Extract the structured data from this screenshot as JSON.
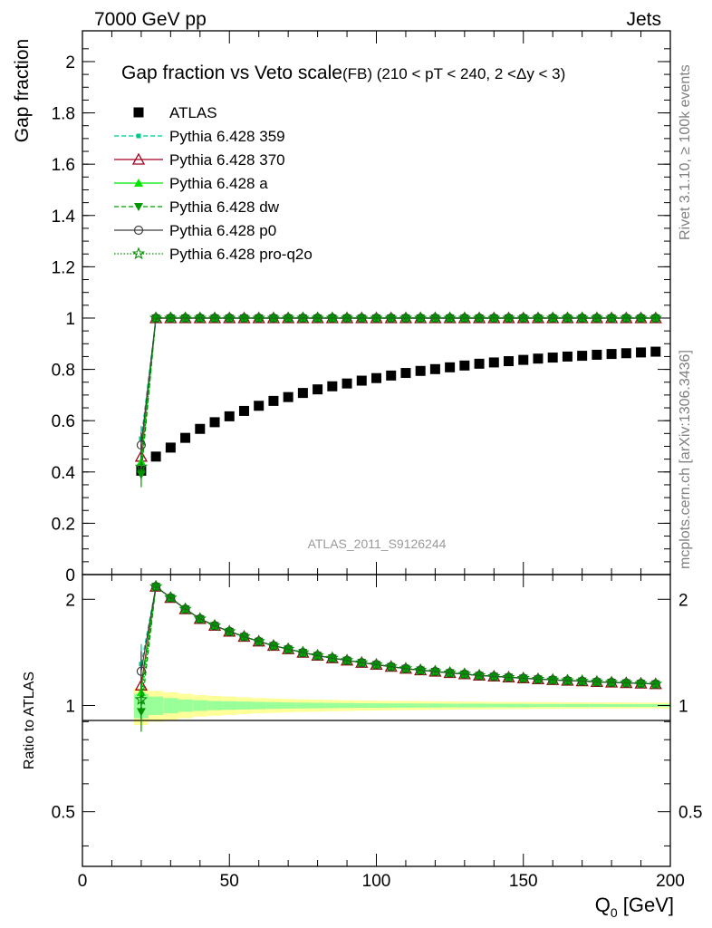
{
  "header": {
    "left": "7000 GeV pp",
    "right": "Jets"
  },
  "side_labels": {
    "rivet": "Rivet 3.1.10, ≥ 100k events",
    "mcplots": "mcplots.cern.ch [arXiv:1306.3436]"
  },
  "colors": {
    "atlas": "#000000",
    "p359": "#00c88c",
    "p370": "#a0001e",
    "a": "#00e600",
    "dw": "#009600",
    "p0": "#404040",
    "proq2o": "#008c00",
    "band_yellow": "#ffff99",
    "band_green": "#99ff99"
  },
  "chart_data": [
    {
      "type": "scatter",
      "title": "Gap fraction vs Veto scale",
      "subtitle": "(FB) (210 < pT < 240, 2 <Δy < 3)",
      "ylabel": "Gap fraction",
      "watermark": "ATLAS_2011_S9126244",
      "xlim": [
        0,
        200
      ],
      "ylim": [
        0,
        2.12
      ],
      "yticks": [
        0,
        0.2,
        0.4,
        0.6,
        0.8,
        1,
        1.2,
        1.4,
        1.6,
        1.8,
        2
      ],
      "ytick_labels": [
        "0",
        "0.2",
        "0.4",
        "0.6",
        "0.8",
        "1",
        "1.2",
        "1.4",
        "1.6",
        "1.8",
        "2"
      ],
      "legend_position": "top-left",
      "x": [
        20,
        25,
        30,
        35,
        40,
        45,
        50,
        55,
        60,
        65,
        70,
        75,
        80,
        85,
        90,
        95,
        100,
        105,
        110,
        115,
        120,
        125,
        130,
        135,
        140,
        145,
        150,
        155,
        160,
        165,
        170,
        175,
        180,
        185,
        190,
        195
      ],
      "series": [
        {
          "name": "ATLAS",
          "key": "atlas",
          "values": [
            0.405,
            0.46,
            0.495,
            0.533,
            0.568,
            0.594,
            0.617,
            0.638,
            0.658,
            0.677,
            0.692,
            0.708,
            0.722,
            0.734,
            0.745,
            0.756,
            0.766,
            0.776,
            0.786,
            0.794,
            0.801,
            0.808,
            0.815,
            0.822,
            0.827,
            0.832,
            0.837,
            0.842,
            0.846,
            0.85,
            0.853,
            0.857,
            0.86,
            0.863,
            0.866,
            0.869
          ]
        },
        {
          "name": "Pythia 6.428 359",
          "key": "p359",
          "values": [
            0.53,
            1,
            1,
            1,
            1,
            1,
            1,
            1,
            1,
            1,
            1,
            1,
            1,
            1,
            1,
            1,
            1,
            1,
            1,
            1,
            1,
            1,
            1,
            1,
            1,
            1,
            1,
            1,
            1,
            1,
            1,
            1,
            1,
            1,
            1,
            1
          ]
        },
        {
          "name": "Pythia 6.428 370",
          "key": "p370",
          "values": [
            0.46,
            1,
            1,
            1,
            1,
            1,
            1,
            1,
            1,
            1,
            1,
            1,
            1,
            1,
            1,
            1,
            1,
            1,
            1,
            1,
            1,
            1,
            1,
            1,
            1,
            1,
            1,
            1,
            1,
            1,
            1,
            1,
            1,
            1,
            1,
            1
          ]
        },
        {
          "name": "Pythia 6.428 a",
          "key": "a",
          "values": [
            0.44,
            1,
            1,
            1,
            1,
            1,
            1,
            1,
            1,
            1,
            1,
            1,
            1,
            1,
            1,
            1,
            1,
            1,
            1,
            1,
            1,
            1,
            1,
            1,
            1,
            1,
            1,
            1,
            1,
            1,
            1,
            1,
            1,
            1,
            1,
            1
          ]
        },
        {
          "name": "Pythia 6.428 dw",
          "key": "dw",
          "values": [
            0.39,
            1,
            1,
            1,
            1,
            1,
            1,
            1,
            1,
            1,
            1,
            1,
            1,
            1,
            1,
            1,
            1,
            1,
            1,
            1,
            1,
            1,
            1,
            1,
            1,
            1,
            1,
            1,
            1,
            1,
            1,
            1,
            1,
            1,
            1,
            1
          ]
        },
        {
          "name": "Pythia 6.428 p0",
          "key": "p0",
          "values": [
            0.505,
            1,
            1,
            1,
            1,
            1,
            1,
            1,
            1,
            1,
            1,
            1,
            1,
            1,
            1,
            1,
            1,
            1,
            1,
            1,
            1,
            1,
            1,
            1,
            1,
            1,
            1,
            1,
            1,
            1,
            1,
            1,
            1,
            1,
            1,
            1
          ]
        },
        {
          "name": "Pythia 6.428 pro-q2o",
          "key": "proq2o",
          "values": [
            0.42,
            1,
            1,
            1,
            1,
            1,
            1,
            1,
            1,
            1,
            1,
            1,
            1,
            1,
            1,
            1,
            1,
            1,
            1,
            1,
            1,
            1,
            1,
            1,
            1,
            1,
            1,
            1,
            1,
            1,
            1,
            1,
            1,
            1,
            1,
            1
          ]
        }
      ]
    },
    {
      "type": "line",
      "ylabel": "Ratio to ATLAS",
      "xlabel": "Q",
      "xlabel_sub": "0",
      "xlabel_unit": " [GeV]",
      "xlim": [
        0,
        200
      ],
      "ylim": [
        0.35,
        2.35
      ],
      "log_y": true,
      "xticks": [
        0,
        50,
        100,
        150,
        200
      ],
      "xtick_labels": [
        "0",
        "50",
        "100",
        "150",
        "200"
      ],
      "yticks": [
        0.5,
        1,
        2
      ],
      "ytick_labels": [
        "0.5",
        "1",
        "2"
      ],
      "band_inner": [
        0.08,
        0.06,
        0.05,
        0.04,
        0.035,
        0.03,
        0.028,
        0.026,
        0.024,
        0.022,
        0.02,
        0.019,
        0.018,
        0.017,
        0.016,
        0.015,
        0.015,
        0.014,
        0.014,
        0.013,
        0.013,
        0.012,
        0.012,
        0.012,
        0.011,
        0.011,
        0.011,
        0.01,
        0.01,
        0.01,
        0.01,
        0.01,
        0.009,
        0.009,
        0.009,
        0.009
      ],
      "band_outer": [
        0.12,
        0.1,
        0.09,
        0.08,
        0.07,
        0.065,
        0.06,
        0.055,
        0.05,
        0.047,
        0.044,
        0.041,
        0.039,
        0.037,
        0.035,
        0.033,
        0.032,
        0.031,
        0.03,
        0.029,
        0.028,
        0.027,
        0.026,
        0.025,
        0.024,
        0.023,
        0.023,
        0.022,
        0.022,
        0.021,
        0.021,
        0.02,
        0.02,
        0.02,
        0.019,
        0.019
      ],
      "series": [
        {
          "key": "p359",
          "values": [
            1.31
          ]
        },
        {
          "key": "p370",
          "values": [
            1.14
          ]
        },
        {
          "key": "a",
          "values": [
            1.09
          ]
        },
        {
          "key": "dw",
          "values": [
            0.96
          ]
        },
        {
          "key": "p0",
          "values": [
            1.25
          ]
        },
        {
          "key": "proq2o",
          "values": [
            1.04
          ]
        }
      ]
    }
  ]
}
